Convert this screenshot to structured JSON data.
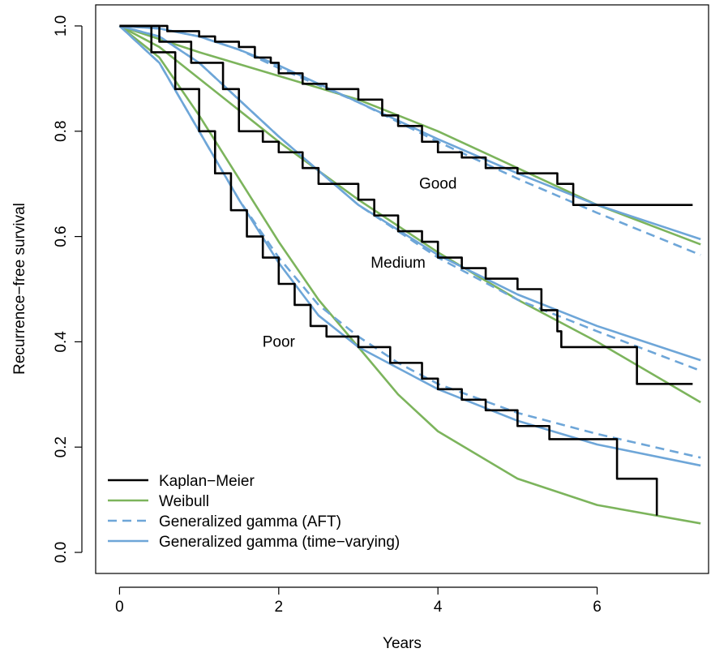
{
  "chart_data": {
    "type": "line",
    "xlabel": "Years",
    "ylabel": "Recurrence−free survival",
    "xlim": [
      -0.3,
      7.4
    ],
    "ylim": [
      -0.04,
      1.04
    ],
    "xticks": [
      0,
      2,
      4,
      6
    ],
    "yticks": [
      0.0,
      0.2,
      0.4,
      0.6,
      0.8,
      1.0
    ],
    "xtick_labels": [
      "0",
      "2",
      "4",
      "6"
    ],
    "ytick_labels": [
      "0.0",
      "0.2",
      "0.4",
      "0.6",
      "0.8",
      "1.0"
    ],
    "grid": false,
    "legend_position": "bottom-left",
    "annotations": [
      {
        "text": "Good",
        "x": 4.0,
        "y": 0.7
      },
      {
        "text": "Medium",
        "x": 3.5,
        "y": 0.55
      },
      {
        "text": "Poor",
        "x": 2.0,
        "y": 0.4
      }
    ],
    "legend": [
      {
        "label": "Kaplan−Meier",
        "color": "#000000",
        "dash": "solid"
      },
      {
        "label": "Weibull",
        "color": "#7cb45c",
        "dash": "solid"
      },
      {
        "label": "Generalized gamma (AFT)",
        "color": "#6ea6d8",
        "dash": "dashed"
      },
      {
        "label": "Generalized gamma (time−varying)",
        "color": "#6ea6d8",
        "dash": "solid"
      }
    ],
    "series": [
      {
        "group": "Good",
        "model": "Kaplan−Meier",
        "step": true,
        "x": [
          0,
          0.6,
          1.0,
          1.2,
          1.4,
          1.5,
          1.7,
          1.9,
          2.0,
          2.3,
          2.6,
          3.0,
          3.3,
          3.5,
          3.8,
          4.0,
          4.3,
          4.6,
          5.0,
          5.5,
          5.7,
          7.2
        ],
        "y": [
          1.0,
          0.99,
          0.98,
          0.97,
          0.97,
          0.96,
          0.94,
          0.93,
          0.91,
          0.89,
          0.88,
          0.86,
          0.83,
          0.81,
          0.78,
          0.76,
          0.75,
          0.73,
          0.72,
          0.7,
          0.66,
          0.66
        ]
      },
      {
        "group": "Good",
        "model": "Weibull",
        "x": [
          0,
          1,
          2,
          3,
          4,
          5,
          6,
          7.3
        ],
        "y": [
          1.0,
          0.95,
          0.905,
          0.86,
          0.8,
          0.73,
          0.66,
          0.585
        ]
      },
      {
        "group": "Good",
        "model": "Generalized gamma (AFT)",
        "x": [
          0,
          0.5,
          1,
          1.5,
          2,
          3,
          4,
          5,
          6,
          7.3
        ],
        "y": [
          1.0,
          0.995,
          0.98,
          0.955,
          0.92,
          0.855,
          0.78,
          0.71,
          0.645,
          0.565
        ]
      },
      {
        "group": "Good",
        "model": "Generalized gamma (time−varying)",
        "x": [
          0,
          0.5,
          1,
          1.5,
          2,
          3,
          4,
          5,
          6,
          7.3
        ],
        "y": [
          1.0,
          0.995,
          0.98,
          0.955,
          0.925,
          0.855,
          0.785,
          0.72,
          0.66,
          0.595
        ]
      },
      {
        "group": "Medium",
        "model": "Kaplan−Meier",
        "step": true,
        "x": [
          0,
          0.5,
          0.9,
          1.3,
          1.5,
          1.8,
          2.0,
          2.3,
          2.5,
          3.0,
          3.2,
          3.5,
          3.8,
          4.0,
          4.3,
          4.6,
          5.0,
          5.3,
          5.5,
          5.55,
          6.5,
          7.2
        ],
        "y": [
          1.0,
          0.97,
          0.93,
          0.88,
          0.8,
          0.78,
          0.76,
          0.73,
          0.7,
          0.67,
          0.64,
          0.61,
          0.59,
          0.56,
          0.54,
          0.52,
          0.5,
          0.46,
          0.42,
          0.39,
          0.32,
          0.32
        ]
      },
      {
        "group": "Medium",
        "model": "Weibull",
        "x": [
          0,
          0.5,
          1,
          1.5,
          2,
          3,
          4,
          5,
          6,
          7.3
        ],
        "y": [
          1.0,
          0.96,
          0.9,
          0.84,
          0.78,
          0.67,
          0.57,
          0.48,
          0.4,
          0.285
        ]
      },
      {
        "group": "Medium",
        "model": "Generalized gamma (AFT)",
        "x": [
          0,
          0.5,
          1,
          1.5,
          2,
          3,
          4,
          5,
          6,
          7.3
        ],
        "y": [
          1.0,
          0.98,
          0.93,
          0.86,
          0.79,
          0.66,
          0.56,
          0.48,
          0.42,
          0.345
        ]
      },
      {
        "group": "Medium",
        "model": "Generalized gamma (time−varying)",
        "x": [
          0,
          0.5,
          1,
          1.5,
          2,
          3,
          4,
          5,
          6,
          7.3
        ],
        "y": [
          1.0,
          0.98,
          0.93,
          0.86,
          0.79,
          0.66,
          0.565,
          0.49,
          0.43,
          0.365
        ]
      },
      {
        "group": "Poor",
        "model": "Kaplan−Meier",
        "step": true,
        "x": [
          0,
          0.4,
          0.7,
          1.0,
          1.2,
          1.4,
          1.6,
          1.8,
          2.0,
          2.2,
          2.4,
          2.6,
          3.0,
          3.4,
          3.8,
          4.0,
          4.3,
          4.6,
          5.0,
          5.4,
          6.25,
          6.75
        ],
        "y": [
          1.0,
          0.95,
          0.88,
          0.8,
          0.72,
          0.65,
          0.6,
          0.56,
          0.51,
          0.47,
          0.43,
          0.41,
          0.39,
          0.36,
          0.33,
          0.31,
          0.29,
          0.27,
          0.24,
          0.215,
          0.14,
          0.07
        ]
      },
      {
        "group": "Poor",
        "model": "Weibull",
        "x": [
          0,
          0.5,
          1,
          1.5,
          2,
          2.5,
          3,
          3.5,
          4,
          5,
          6,
          7.3
        ],
        "y": [
          1.0,
          0.94,
          0.83,
          0.71,
          0.59,
          0.48,
          0.39,
          0.3,
          0.23,
          0.14,
          0.09,
          0.055
        ]
      },
      {
        "group": "Poor",
        "model": "Generalized gamma (AFT)",
        "x": [
          0,
          0.5,
          1,
          1.5,
          2,
          2.5,
          3,
          3.5,
          4,
          5,
          6,
          7.3
        ],
        "y": [
          1.0,
          0.93,
          0.8,
          0.67,
          0.56,
          0.47,
          0.41,
          0.36,
          0.32,
          0.265,
          0.225,
          0.18
        ]
      },
      {
        "group": "Poor",
        "model": "Generalized gamma (time−varying)",
        "x": [
          0,
          0.5,
          1,
          1.5,
          2,
          2.5,
          3,
          3.5,
          4,
          5,
          6,
          7.3
        ],
        "y": [
          1.0,
          0.93,
          0.8,
          0.67,
          0.55,
          0.45,
          0.39,
          0.35,
          0.31,
          0.25,
          0.205,
          0.165
        ]
      }
    ]
  }
}
